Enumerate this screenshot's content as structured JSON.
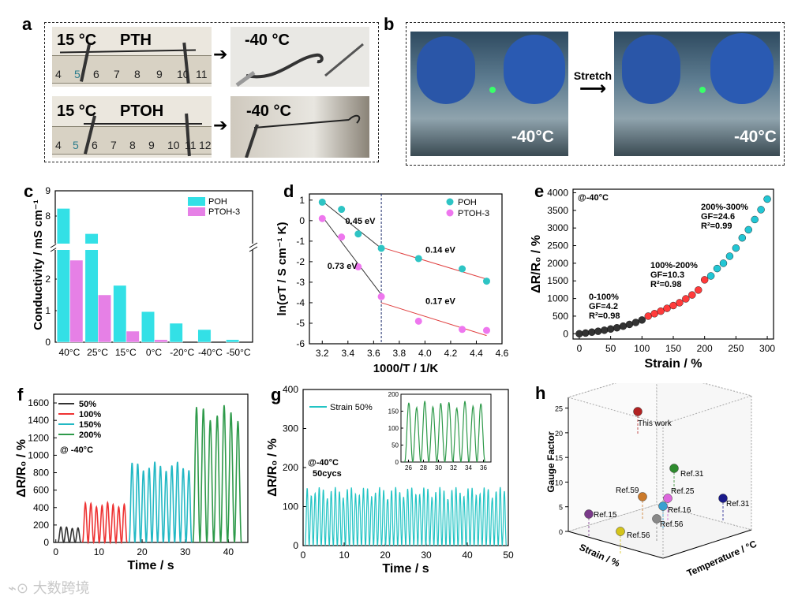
{
  "panel_labels": [
    "a",
    "b",
    "c",
    "d",
    "e",
    "f",
    "g",
    "h"
  ],
  "panel_a": {
    "row1_left_temp": "15 °C",
    "row1_left_name": "PTH",
    "row1_right_temp": "-40 °C",
    "row2_left_temp": "15 °C",
    "row2_left_name": "PTOH",
    "row2_right_temp": "-40 °C",
    "ruler_ticks_1": [
      "4",
      "5",
      "6",
      "7",
      "8",
      "9",
      "10",
      "11"
    ],
    "ruler_ticks_2": [
      "4",
      "5",
      "6",
      "7",
      "8",
      "9",
      "10",
      "11",
      "12"
    ]
  },
  "panel_b": {
    "arrow_label": "Stretch",
    "left_temp": "-40°C",
    "right_temp": "-40°C"
  },
  "watermark": "大数跨境",
  "chart_data": [
    {
      "id": "c",
      "type": "bar",
      "ylabel": "Conductivity / mS cm⁻¹",
      "categories": [
        "40°C",
        "25°C",
        "15°C",
        "0°C",
        "-20°C",
        "-40°C",
        "-50°C"
      ],
      "series": [
        {
          "name": "POH",
          "color": "#33e0e6",
          "values": [
            8.3,
            7.3,
            1.8,
            0.97,
            0.6,
            0.4,
            0.08
          ]
        },
        {
          "name": "PTOH-3",
          "color": "#e680e6",
          "values": [
            2.6,
            1.5,
            0.35,
            0.08,
            null,
            null,
            null
          ]
        }
      ],
      "y_lower_ticks": [
        "0",
        "1",
        "2"
      ],
      "y_upper_ticks": [
        "8",
        "9"
      ],
      "broken_axis": [
        3,
        7
      ]
    },
    {
      "id": "d",
      "type": "scatter",
      "xlabel": "1000/T / 1/K",
      "ylabel": "ln(σT / S cm⁻¹ K)",
      "xlim": [
        3.1,
        4.6
      ],
      "ylim": [
        -6,
        1.3
      ],
      "xticks": [
        "3.2",
        "3.4",
        "3.6",
        "3.8",
        "4.0",
        "4.2",
        "4.4",
        "4.6"
      ],
      "yticks": [
        "1",
        "0",
        "-1",
        "-2",
        "-3",
        "-4",
        "-5",
        "-6"
      ],
      "series": [
        {
          "name": "POH",
          "color": "#2ec4c4",
          "x": [
            3.2,
            3.35,
            3.48,
            3.66,
            3.95,
            4.29,
            4.48
          ],
          "y": [
            0.9,
            0.55,
            -0.65,
            -1.35,
            -1.85,
            -2.35,
            -2.95
          ]
        },
        {
          "name": "PTOH-3",
          "color": "#ee77ee",
          "x": [
            3.2,
            3.35,
            3.48,
            3.66,
            3.95,
            4.29,
            4.48
          ],
          "y": [
            0.1,
            -0.8,
            -2.25,
            -3.7,
            -4.9,
            -5.3,
            -5.35
          ]
        }
      ],
      "annotations": [
        "0.45 eV",
        "0.14 eV",
        "0.73 eV",
        "0.17 eV"
      ],
      "vline_x": 3.66
    },
    {
      "id": "e",
      "type": "scatter",
      "xlabel": "Strain / %",
      "ylabel": "ΔR/R₀ / %",
      "xlim": [
        -10,
        310
      ],
      "ylim": [
        -150,
        4100
      ],
      "xticks": [
        "0",
        "50",
        "100",
        "150",
        "200",
        "250",
        "300"
      ],
      "yticks": [
        "0",
        "500",
        "1000",
        "1500",
        "2000",
        "2500",
        "3000",
        "3500",
        "4000"
      ],
      "temp_label": "@-40°C",
      "segments": [
        {
          "color": "#333333",
          "x": [
            0,
            10,
            20,
            30,
            40,
            50,
            60,
            70,
            80,
            90,
            100
          ],
          "y": [
            0,
            20,
            45,
            70,
            100,
            135,
            170,
            215,
            265,
            320,
            390
          ]
        },
        {
          "color": "#ff3b3b",
          "x": [
            110,
            120,
            130,
            140,
            150,
            160,
            170,
            180,
            190,
            200
          ],
          "y": [
            500,
            570,
            640,
            720,
            800,
            880,
            990,
            1100,
            1240,
            1530
          ]
        },
        {
          "color": "#22c6d4",
          "x": [
            210,
            220,
            230,
            240,
            250,
            260,
            270,
            280,
            290,
            300
          ],
          "y": [
            1640,
            1850,
            2000,
            2200,
            2430,
            2720,
            2950,
            3240,
            3520,
            3820
          ]
        }
      ],
      "annotations": [
        "0-100%",
        "GF=4.2",
        "R²=0.98",
        "100%-200%",
        "GF=10.3",
        "R²=0.98",
        "200%-300%",
        "GF=24.6",
        "R²=0.99"
      ]
    },
    {
      "id": "f",
      "type": "line",
      "xlabel": "Time / s",
      "ylabel": "ΔR/R₀ / %",
      "xlim": [
        -0.5,
        44.5
      ],
      "ylim": [
        0,
        1700
      ],
      "xticks": [
        "0",
        "10",
        "20",
        "30",
        "40"
      ],
      "yticks": [
        "0",
        "200",
        "400",
        "600",
        "800",
        "1000",
        "1200",
        "1400",
        "1600"
      ],
      "temp_label": "@ -40°C",
      "series": [
        {
          "name": "50%",
          "color": "#333333",
          "start": 0.5,
          "end": 5.8,
          "cycles": 4,
          "amp": 175
        },
        {
          "name": "100%",
          "color": "#ee3333",
          "start": 6.2,
          "end": 16.5,
          "cycles": 8,
          "amp": 445
        },
        {
          "name": "150%",
          "color": "#22b8c4",
          "start": 17.0,
          "end": 31.5,
          "cycles": 11,
          "amp": 900
        },
        {
          "name": "200%",
          "color": "#2e9a4a",
          "start": 31.8,
          "end": 43.0,
          "cycles": 7,
          "amp": 1530
        }
      ]
    },
    {
      "id": "g",
      "type": "line",
      "xlabel": "Time / s",
      "ylabel": "ΔR/R₀ / %",
      "xlim": [
        0,
        50
      ],
      "ylim": [
        0,
        400
      ],
      "xticks": [
        "0",
        "10",
        "20",
        "30",
        "40",
        "50"
      ],
      "yticks": [
        "0",
        "100",
        "200",
        "300",
        "400"
      ],
      "series": [
        {
          "name": "Strain 50%",
          "color": "#22c4c4",
          "cycles": 50,
          "amp": 150
        }
      ],
      "annotation_temp": "@-40°C",
      "annotation_cycles": "50cycs",
      "inset": {
        "color": "#2e9a4a",
        "xlim": [
          25,
          37
        ],
        "ylim": [
          0,
          200
        ],
        "xticks": [
          "26",
          "28",
          "30",
          "32",
          "34",
          "36"
        ],
        "yticks": [
          "0",
          "50",
          "100",
          "150",
          "200"
        ],
        "cycles": 10,
        "amp": 180
      }
    },
    {
      "id": "h",
      "type": "scatter3d",
      "zlabel": "Gauge Factor",
      "xlabel": "Strain / %",
      "ylabel": "Temperature / °C",
      "zticks": [
        "0",
        "5",
        "10",
        "15",
        "20",
        "25"
      ],
      "points": [
        {
          "label": "This work",
          "color": "#b22222"
        },
        {
          "label": "Ref.31",
          "color": "#2e8b2e"
        },
        {
          "label": "Ref.59",
          "color": "#cc7a2a"
        },
        {
          "label": "Ref.25",
          "color": "#dd66dd"
        },
        {
          "label": "Ref.16",
          "color": "#3aa0d0"
        },
        {
          "label": "Ref.31",
          "color": "#1a1a8a"
        },
        {
          "label": "Ref.15",
          "color": "#7a3a8a"
        },
        {
          "label": "Ref.56",
          "color": "#888888"
        },
        {
          "label": "Ref.56",
          "color": "#d4c41a"
        }
      ]
    }
  ]
}
